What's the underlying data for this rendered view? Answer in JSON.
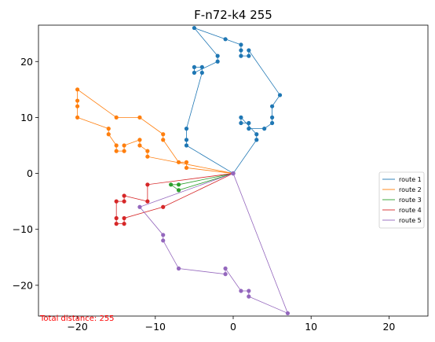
{
  "chart_data": {
    "type": "line",
    "title": "F-n72-k4 255",
    "xlabel": "",
    "ylabel": "",
    "xlim": [
      -25,
      25
    ],
    "ylim": [
      -25.5,
      26.5
    ],
    "xticks": [
      -20,
      -10,
      0,
      10,
      20
    ],
    "yticks": [
      -20,
      -10,
      0,
      10,
      20
    ],
    "grid": false,
    "legend_position": "center-right",
    "annotation": "Total distance: 255",
    "annotation_color": "#ff0000",
    "depot": [
      0,
      0
    ],
    "series": [
      {
        "name": "route 1",
        "color": "#1f77b4",
        "points": [
          [
            0,
            0
          ],
          [
            -6,
            5
          ],
          [
            -6,
            6
          ],
          [
            -6,
            8
          ],
          [
            -4,
            18
          ],
          [
            -4,
            19
          ],
          [
            -5,
            19
          ],
          [
            -5,
            18
          ],
          [
            -2,
            20
          ],
          [
            -2,
            21
          ],
          [
            -5,
            26
          ],
          [
            -1,
            24
          ],
          [
            1,
            23
          ],
          [
            1,
            22
          ],
          [
            1,
            21
          ],
          [
            2,
            21
          ],
          [
            2,
            22
          ],
          [
            6,
            14
          ],
          [
            5,
            12
          ],
          [
            5,
            10
          ],
          [
            5,
            9
          ],
          [
            4,
            8
          ],
          [
            2,
            8
          ],
          [
            2,
            9
          ],
          [
            1,
            9
          ],
          [
            1,
            10
          ],
          [
            3,
            7
          ],
          [
            3,
            6
          ],
          [
            0,
            0
          ]
        ]
      },
      {
        "name": "route 2",
        "color": "#ff7f0e",
        "points": [
          [
            0,
            0
          ],
          [
            -6,
            1
          ],
          [
            -6,
            2
          ],
          [
            -7,
            2
          ],
          [
            -9,
            6
          ],
          [
            -9,
            7
          ],
          [
            -12,
            10
          ],
          [
            -15,
            10
          ],
          [
            -20,
            15
          ],
          [
            -20,
            13
          ],
          [
            -20,
            12
          ],
          [
            -20,
            10
          ],
          [
            -16,
            8
          ],
          [
            -16,
            7
          ],
          [
            -15,
            5
          ],
          [
            -15,
            4
          ],
          [
            -14,
            4
          ],
          [
            -14,
            5
          ],
          [
            -12,
            6
          ],
          [
            -12,
            5
          ],
          [
            -11,
            4
          ],
          [
            -11,
            3
          ],
          [
            0,
            0
          ]
        ]
      },
      {
        "name": "route 3",
        "color": "#2ca02c",
        "points": [
          [
            0,
            0
          ],
          [
            -7,
            -2
          ],
          [
            -8,
            -2
          ],
          [
            -7,
            -3
          ],
          [
            0,
            0
          ]
        ]
      },
      {
        "name": "route 4",
        "color": "#d62728",
        "points": [
          [
            0,
            0
          ],
          [
            -11,
            -2
          ],
          [
            -11,
            -5
          ],
          [
            -14,
            -4
          ],
          [
            -14,
            -5
          ],
          [
            -15,
            -5
          ],
          [
            -15,
            -8
          ],
          [
            -15,
            -9
          ],
          [
            -14,
            -9
          ],
          [
            -14,
            -8
          ],
          [
            -9,
            -6
          ],
          [
            0,
            0
          ]
        ]
      },
      {
        "name": "route 5",
        "color": "#9467bd",
        "points": [
          [
            0,
            0
          ],
          [
            -12,
            -6
          ],
          [
            -9,
            -11
          ],
          [
            -9,
            -12
          ],
          [
            -7,
            -17
          ],
          [
            -1,
            -18
          ],
          [
            -1,
            -17
          ],
          [
            1,
            -21
          ],
          [
            2,
            -21
          ],
          [
            2,
            -22
          ],
          [
            7,
            -25
          ],
          [
            0,
            0
          ]
        ]
      }
    ]
  }
}
